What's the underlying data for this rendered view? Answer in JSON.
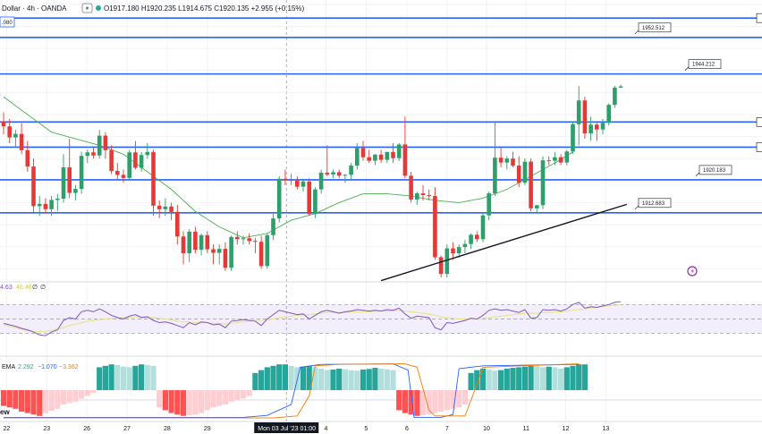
{
  "header": {
    "symbol": "Dollar · 4h · OANDA",
    "ohlc": "O1917.180 H1920.235 L1914.675 C1920.135 +2.955 (+0.15%)",
    "price_box": ".080"
  },
  "rsi_header": {
    "values": [
      "4.63",
      "46.46",
      "∅",
      "∅"
    ]
  },
  "macd_header": {
    "label": "EMA",
    "v1": "2.292",
    "v2": "−1.070",
    "v3": "−3.362"
  },
  "bottom_pane": {
    "label": "ew"
  },
  "crosshair_label": "Mon 03 Jul '23   01:00",
  "chart_data": {
    "type": "candlestick",
    "title": "",
    "x_ticks": [
      {
        "label": "22",
        "i": 0.5
      },
      {
        "label": "23",
        "i": 7.2
      },
      {
        "label": "26",
        "i": 13.9
      },
      {
        "label": "27",
        "i": 20.6
      },
      {
        "label": "28",
        "i": 27.3
      },
      {
        "label": "29",
        "i": 34.0
      },
      {
        "label": "4",
        "i": 53.8
      },
      {
        "label": "5",
        "i": 60.5
      },
      {
        "label": "6",
        "i": 67.3
      },
      {
        "label": "7",
        "i": 74.0
      },
      {
        "label": "10",
        "i": 80.6
      },
      {
        "label": "11",
        "i": 87.2
      },
      {
        "label": "12",
        "i": 93.8
      },
      {
        "label": "13",
        "i": 100.5
      }
    ],
    "crosshair_i": 47.2,
    "price_range": [
      1897,
      1961
    ],
    "levels": [
      {
        "price": 1956.9,
        "label": ""
      },
      {
        "price": 1952.512,
        "label": "1952.512"
      },
      {
        "price": 1944.212,
        "label": "1944.212"
      },
      {
        "price": 1933.3,
        "label": ""
      },
      {
        "price": 1927.6,
        "label": ""
      },
      {
        "price": 1920.183,
        "label": "1920.183"
      },
      {
        "price": 1912.683,
        "label": "1912.683"
      }
    ],
    "trendline": [
      [
        63,
        1897.3
      ],
      [
        104,
        1914.6
      ]
    ],
    "ema_line": [
      [
        0,
        1939
      ],
      [
        4,
        1935
      ],
      [
        8,
        1931
      ],
      [
        12,
        1929.5
      ],
      [
        16,
        1928
      ],
      [
        20,
        1926
      ],
      [
        24,
        1922
      ],
      [
        28,
        1918
      ],
      [
        32,
        1913
      ],
      [
        36,
        1909.5
      ],
      [
        40,
        1907
      ],
      [
        44,
        1908
      ],
      [
        48,
        1911
      ],
      [
        52,
        1912.5
      ],
      [
        56,
        1915
      ],
      [
        60,
        1917
      ],
      [
        64,
        1917
      ],
      [
        68,
        1916.5
      ],
      [
        72,
        1915.5
      ],
      [
        76,
        1915
      ],
      [
        80,
        1916
      ],
      [
        84,
        1918
      ],
      [
        88,
        1921
      ],
      [
        92,
        1924
      ],
      [
        95,
        1926.5
      ]
    ],
    "candles": [
      [
        1933.4,
        1935.5,
        1930.5,
        1932.3
      ],
      [
        1932.3,
        1934.0,
        1928.5,
        1929.8
      ],
      [
        1929.8,
        1931.5,
        1927.5,
        1930.6
      ],
      [
        1930.6,
        1933.0,
        1926.0,
        1926.9
      ],
      [
        1926.9,
        1929.0,
        1922.0,
        1923.2
      ],
      [
        1923.2,
        1925.0,
        1912.5,
        1914.2
      ],
      [
        1914.2,
        1916.5,
        1912.0,
        1914.7
      ],
      [
        1914.7,
        1916.0,
        1912.5,
        1913.5
      ],
      [
        1913.5,
        1916.5,
        1912.0,
        1915.6
      ],
      [
        1915.6,
        1917.0,
        1913.0,
        1915.9
      ],
      [
        1915.9,
        1926.0,
        1915.0,
        1923.0
      ],
      [
        1923.0,
        1929.5,
        1916.0,
        1917.2
      ],
      [
        1917.2,
        1919.0,
        1915.5,
        1918.1
      ],
      [
        1918.1,
        1926.5,
        1917.0,
        1925.6
      ],
      [
        1925.6,
        1927.0,
        1924.0,
        1926.4
      ],
      [
        1926.4,
        1927.5,
        1925.0,
        1925.7
      ],
      [
        1925.7,
        1931.5,
        1925.0,
        1930.2
      ],
      [
        1930.2,
        1931.0,
        1925.0,
        1926.9
      ],
      [
        1926.9,
        1928.0,
        1921.5,
        1922.2
      ],
      [
        1922.2,
        1924.0,
        1920.0,
        1921.3
      ],
      [
        1921.3,
        1922.5,
        1919.5,
        1920.6
      ],
      [
        1920.6,
        1927.0,
        1920.0,
        1926.4
      ],
      [
        1926.4,
        1929.0,
        1922.5,
        1922.9
      ],
      [
        1922.9,
        1926.5,
        1922.0,
        1925.8
      ],
      [
        1925.8,
        1928.5,
        1925.0,
        1926.5
      ],
      [
        1926.5,
        1927.0,
        1912.0,
        1914.3
      ],
      [
        1914.3,
        1915.5,
        1911.5,
        1913.5
      ],
      [
        1913.5,
        1916.0,
        1912.0,
        1914.1
      ],
      [
        1914.1,
        1915.0,
        1911.0,
        1912.9
      ],
      [
        1912.9,
        1914.5,
        1905.5,
        1907.3
      ],
      [
        1907.3,
        1908.5,
        1901.0,
        1903.5
      ],
      [
        1903.5,
        1909.0,
        1901.5,
        1908.4
      ],
      [
        1908.4,
        1909.5,
        1903.5,
        1904.3
      ],
      [
        1904.3,
        1908.0,
        1903.0,
        1907.6
      ],
      [
        1907.6,
        1908.5,
        1903.5,
        1904.4
      ],
      [
        1904.4,
        1905.5,
        1901.0,
        1903.6
      ],
      [
        1903.6,
        1905.5,
        1901.0,
        1904.5
      ],
      [
        1904.5,
        1906.0,
        1899.5,
        1900.2
      ],
      [
        1900.2,
        1907.5,
        1899.5,
        1907.2
      ],
      [
        1907.2,
        1908.5,
        1905.5,
        1906.7
      ],
      [
        1906.7,
        1907.5,
        1905.5,
        1906.9
      ],
      [
        1906.9,
        1908.0,
        1905.5,
        1906.3
      ],
      [
        1906.3,
        1907.0,
        1903.5,
        1906.1
      ],
      [
        1906.1,
        1907.5,
        1900.0,
        1900.6
      ],
      [
        1900.6,
        1908.0,
        1900.0,
        1907.6
      ],
      [
        1907.6,
        1912.5,
        1906.5,
        1911.4
      ],
      [
        1911.4,
        1921.0,
        1910.5,
        1920.4
      ],
      [
        1920.4,
        1922.5,
        1919.0,
        1920.2
      ],
      [
        1920.2,
        1921.5,
        1919.0,
        1920.0
      ],
      [
        1920.0,
        1921.0,
        1918.0,
        1918.6
      ],
      [
        1918.6,
        1920.5,
        1917.5,
        1919.8
      ],
      [
        1919.8,
        1920.5,
        1912.0,
        1912.4
      ],
      [
        1912.4,
        1918.5,
        1911.5,
        1918.0
      ],
      [
        1918.0,
        1922.5,
        1917.0,
        1921.8
      ],
      [
        1921.8,
        1928.0,
        1921.0,
        1921.4
      ],
      [
        1921.4,
        1922.5,
        1920.5,
        1921.9
      ],
      [
        1921.9,
        1922.5,
        1920.5,
        1921.1
      ],
      [
        1921.1,
        1921.5,
        1919.5,
        1921.3
      ],
      [
        1921.3,
        1924.0,
        1920.0,
        1923.4
      ],
      [
        1923.4,
        1928.5,
        1922.5,
        1927.4
      ],
      [
        1927.4,
        1929.0,
        1924.5,
        1925.3
      ],
      [
        1925.3,
        1927.0,
        1924.0,
        1924.5
      ],
      [
        1924.5,
        1926.0,
        1923.5,
        1925.9
      ],
      [
        1925.9,
        1927.0,
        1924.0,
        1924.7
      ],
      [
        1924.7,
        1926.5,
        1924.0,
        1926.5
      ],
      [
        1926.5,
        1928.5,
        1924.0,
        1925.1
      ],
      [
        1925.1,
        1928.5,
        1924.5,
        1928.2
      ],
      [
        1928.2,
        1934.5,
        1920.5,
        1921.1
      ],
      [
        1921.1,
        1922.0,
        1915.0,
        1915.7
      ],
      [
        1915.7,
        1917.5,
        1914.5,
        1917.1
      ],
      [
        1917.1,
        1919.0,
        1915.5,
        1916.7
      ],
      [
        1916.7,
        1918.0,
        1915.5,
        1916.5
      ],
      [
        1916.5,
        1918.5,
        1902.0,
        1902.6
      ],
      [
        1902.6,
        1903.0,
        1898.0,
        1898.8
      ],
      [
        1898.8,
        1905.5,
        1898.0,
        1904.6
      ],
      [
        1904.6,
        1906.0,
        1902.0,
        1903.5
      ],
      [
        1903.5,
        1905.5,
        1902.5,
        1904.9
      ],
      [
        1904.9,
        1906.5,
        1903.5,
        1905.6
      ],
      [
        1905.6,
        1908.0,
        1904.5,
        1907.7
      ],
      [
        1907.7,
        1908.5,
        1906.0,
        1906.7
      ],
      [
        1906.7,
        1912.5,
        1906.0,
        1912.1
      ],
      [
        1912.1,
        1917.5,
        1911.0,
        1917.1
      ],
      [
        1917.1,
        1933.5,
        1916.5,
        1925.2
      ],
      [
        1925.2,
        1927.5,
        1923.0,
        1924.1
      ],
      [
        1924.1,
        1925.5,
        1922.5,
        1925.0
      ],
      [
        1925.0,
        1926.5,
        1923.0,
        1923.4
      ],
      [
        1923.4,
        1925.5,
        1918.5,
        1919.5
      ],
      [
        1919.5,
        1925.0,
        1919.0,
        1924.3
      ],
      [
        1924.3,
        1925.0,
        1913.0,
        1913.7
      ],
      [
        1913.7,
        1914.5,
        1912.5,
        1914.4
      ],
      [
        1914.4,
        1925.5,
        1913.5,
        1924.6
      ],
      [
        1924.6,
        1925.5,
        1923.5,
        1924.5
      ],
      [
        1924.5,
        1926.5,
        1923.5,
        1925.3
      ],
      [
        1925.3,
        1926.0,
        1923.5,
        1924.1
      ],
      [
        1924.1,
        1927.0,
        1923.5,
        1926.6
      ],
      [
        1926.6,
        1933.5,
        1926.0,
        1932.8
      ],
      [
        1932.8,
        1941.5,
        1928.0,
        1938.2
      ],
      [
        1938.2,
        1939.0,
        1929.5,
        1930.7
      ],
      [
        1930.7,
        1934.5,
        1929.0,
        1932.7
      ],
      [
        1932.7,
        1933.5,
        1929.0,
        1931.6
      ],
      [
        1931.6,
        1934.0,
        1930.5,
        1933.1
      ],
      [
        1933.1,
        1937.5,
        1932.5,
        1937.2
      ],
      [
        1937.2,
        1941.5,
        1936.5,
        1941.1
      ],
      [
        1941.1,
        1941.8,
        1941.0,
        1941.4
      ]
    ],
    "rsi": {
      "range": [
        0,
        100
      ],
      "bands": [
        70,
        50,
        30
      ],
      "rsi_values": [
        44,
        42,
        40,
        37,
        35,
        32,
        28,
        27,
        32,
        35,
        48,
        52,
        50,
        60,
        62,
        60,
        64,
        60,
        55,
        52,
        50,
        54,
        56,
        52,
        53,
        48,
        45,
        46,
        44,
        41,
        38,
        45,
        42,
        46,
        45,
        42,
        43,
        38,
        47,
        48,
        49,
        48,
        47,
        41,
        50,
        56,
        62,
        60,
        58,
        56,
        57,
        50,
        55,
        60,
        62,
        60,
        58,
        60,
        61,
        63,
        62,
        61,
        62,
        61,
        63,
        62,
        65,
        57,
        51,
        54,
        53,
        52,
        38,
        35,
        45,
        44,
        46,
        48,
        51,
        50,
        55,
        62,
        64,
        62,
        63,
        61,
        59,
        63,
        51,
        52,
        63,
        62,
        63,
        61,
        64,
        70,
        73,
        65,
        67,
        66,
        68,
        70,
        73,
        74
      ],
      "ma_values": [
        42,
        40,
        38,
        36,
        34,
        33,
        33,
        33,
        34,
        36,
        38,
        41,
        43,
        45,
        47,
        48,
        49,
        50,
        51,
        51,
        52,
        52,
        53,
        53,
        53,
        52,
        51,
        50,
        49,
        47,
        46,
        46,
        45,
        45,
        45,
        44,
        44,
        43,
        44,
        45,
        46,
        47,
        48,
        48,
        49,
        50,
        52,
        53,
        54,
        55,
        56,
        56,
        57,
        58,
        59,
        59,
        59,
        59,
        60,
        60,
        60,
        60,
        61,
        61,
        61,
        61,
        62,
        61,
        60,
        59,
        58,
        57,
        55,
        53,
        52,
        51,
        50,
        50,
        50,
        50,
        51,
        52,
        53,
        54,
        55,
        56,
        57,
        58,
        58,
        58,
        59,
        59,
        60,
        60,
        61,
        62,
        63,
        64,
        65,
        66,
        67,
        68,
        69,
        70
      ]
    },
    "macd": {
      "hist_range": [
        -1,
        1
      ],
      "hist": [
        -0.55,
        -0.6,
        -0.65,
        -0.75,
        -0.8,
        -0.85,
        -0.9,
        -0.8,
        -0.72,
        -0.65,
        -0.5,
        -0.45,
        -0.4,
        -0.3,
        -0.2,
        -0.1,
        0.8,
        0.85,
        0.9,
        0.88,
        0.82,
        0.8,
        0.85,
        0.9,
        0.88,
        0.85,
        -0.6,
        -0.7,
        -0.8,
        -0.85,
        -0.9,
        -0.88,
        -0.85,
        -0.8,
        -0.7,
        -0.6,
        -0.55,
        -0.5,
        -0.4,
        -0.35,
        -0.3,
        -0.2,
        0.6,
        0.7,
        0.8,
        0.85,
        0.9,
        0.9,
        0.85,
        0.8,
        0.82,
        0.85,
        0.8,
        0.75,
        0.7,
        0.72,
        0.75,
        0.73,
        0.7,
        0.68,
        0.72,
        0.74,
        0.78,
        0.75,
        0.73,
        0.7,
        -0.7,
        -0.8,
        -0.85,
        -0.9,
        -0.88,
        -0.85,
        -0.8,
        -0.75,
        -0.7,
        -0.65,
        -0.6,
        -0.5,
        0.6,
        0.7,
        0.75,
        0.72,
        0.68,
        0.7,
        0.75,
        0.78,
        0.8,
        0.82,
        0.85,
        0.84,
        0.8,
        0.82,
        0.8,
        0.75,
        0.8,
        0.85,
        0.9,
        0.9
      ],
      "line1": [
        [
          0,
          -0.95
        ],
        [
          40,
          -0.95
        ],
        [
          44,
          -0.88
        ],
        [
          48,
          -0.5
        ],
        [
          49.5,
          0.8
        ],
        [
          53,
          0.9
        ],
        [
          65,
          0.92
        ],
        [
          67.5,
          0.7
        ],
        [
          68.5,
          -0.95
        ],
        [
          73,
          -0.95
        ],
        [
          75,
          -0.85
        ],
        [
          76,
          0.75
        ],
        [
          80,
          0.85
        ],
        [
          96,
          0.9
        ]
      ],
      "line2": [
        [
          0,
          -0.97
        ],
        [
          45,
          -0.97
        ],
        [
          49,
          -0.9
        ],
        [
          51,
          -0.2
        ],
        [
          52,
          0.85
        ],
        [
          56,
          0.9
        ],
        [
          67,
          0.92
        ],
        [
          69,
          0.8
        ],
        [
          71,
          -0.7
        ],
        [
          72,
          -0.9
        ],
        [
          77,
          -0.9
        ],
        [
          79,
          0.2
        ],
        [
          80,
          0.8
        ],
        [
          96,
          0.92
        ]
      ]
    }
  }
}
